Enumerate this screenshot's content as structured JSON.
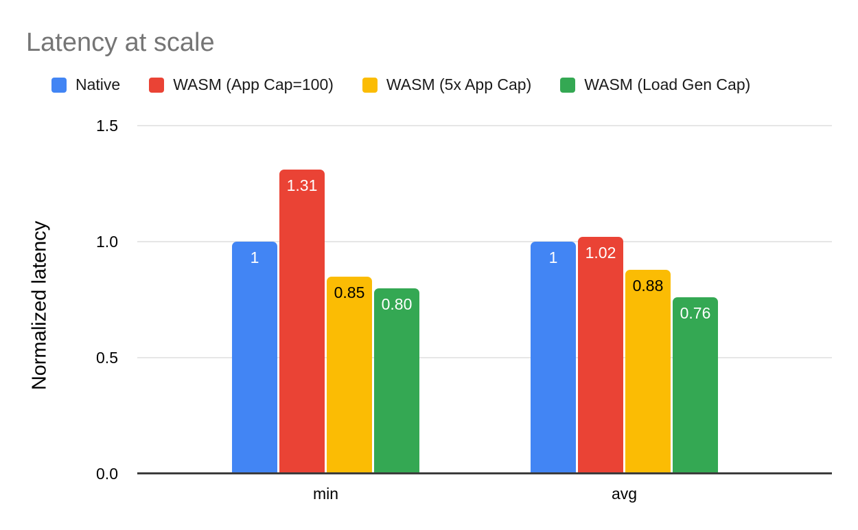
{
  "chart_data": {
    "type": "bar",
    "title": "Latency at scale",
    "xlabel": "",
    "ylabel": "Normalized latency",
    "categories": [
      "min",
      "avg"
    ],
    "series": [
      {
        "name": "Native",
        "color": "#4285f4",
        "label_color": "#ffffff",
        "values": [
          1.0,
          1.0
        ],
        "labels": [
          "1",
          "1"
        ]
      },
      {
        "name": "WASM (App Cap=100)",
        "color": "#ea4335",
        "label_color": "#ffffff",
        "values": [
          1.31,
          1.02
        ],
        "labels": [
          "1.31",
          "1.02"
        ]
      },
      {
        "name": "WASM (5x App Cap)",
        "color": "#fbbc04",
        "label_color": "#000000",
        "values": [
          0.85,
          0.88
        ],
        "labels": [
          "0.85",
          "0.88"
        ]
      },
      {
        "name": "WASM (Load Gen Cap)",
        "color": "#34a853",
        "label_color": "#ffffff",
        "values": [
          0.8,
          0.76
        ],
        "labels": [
          "0.80",
          "0.76"
        ]
      }
    ],
    "ylim": [
      0,
      1.5
    ],
    "yticks": [
      "0.0",
      "0.5",
      "1.0",
      "1.5"
    ],
    "grid": true,
    "legend_position": "top-left"
  },
  "style_colors": {
    "title_text": "#757575",
    "axis_text": "#000000",
    "gridline": "#e6e6e6",
    "baseline": "#3c3c3c",
    "background": "#ffffff"
  }
}
